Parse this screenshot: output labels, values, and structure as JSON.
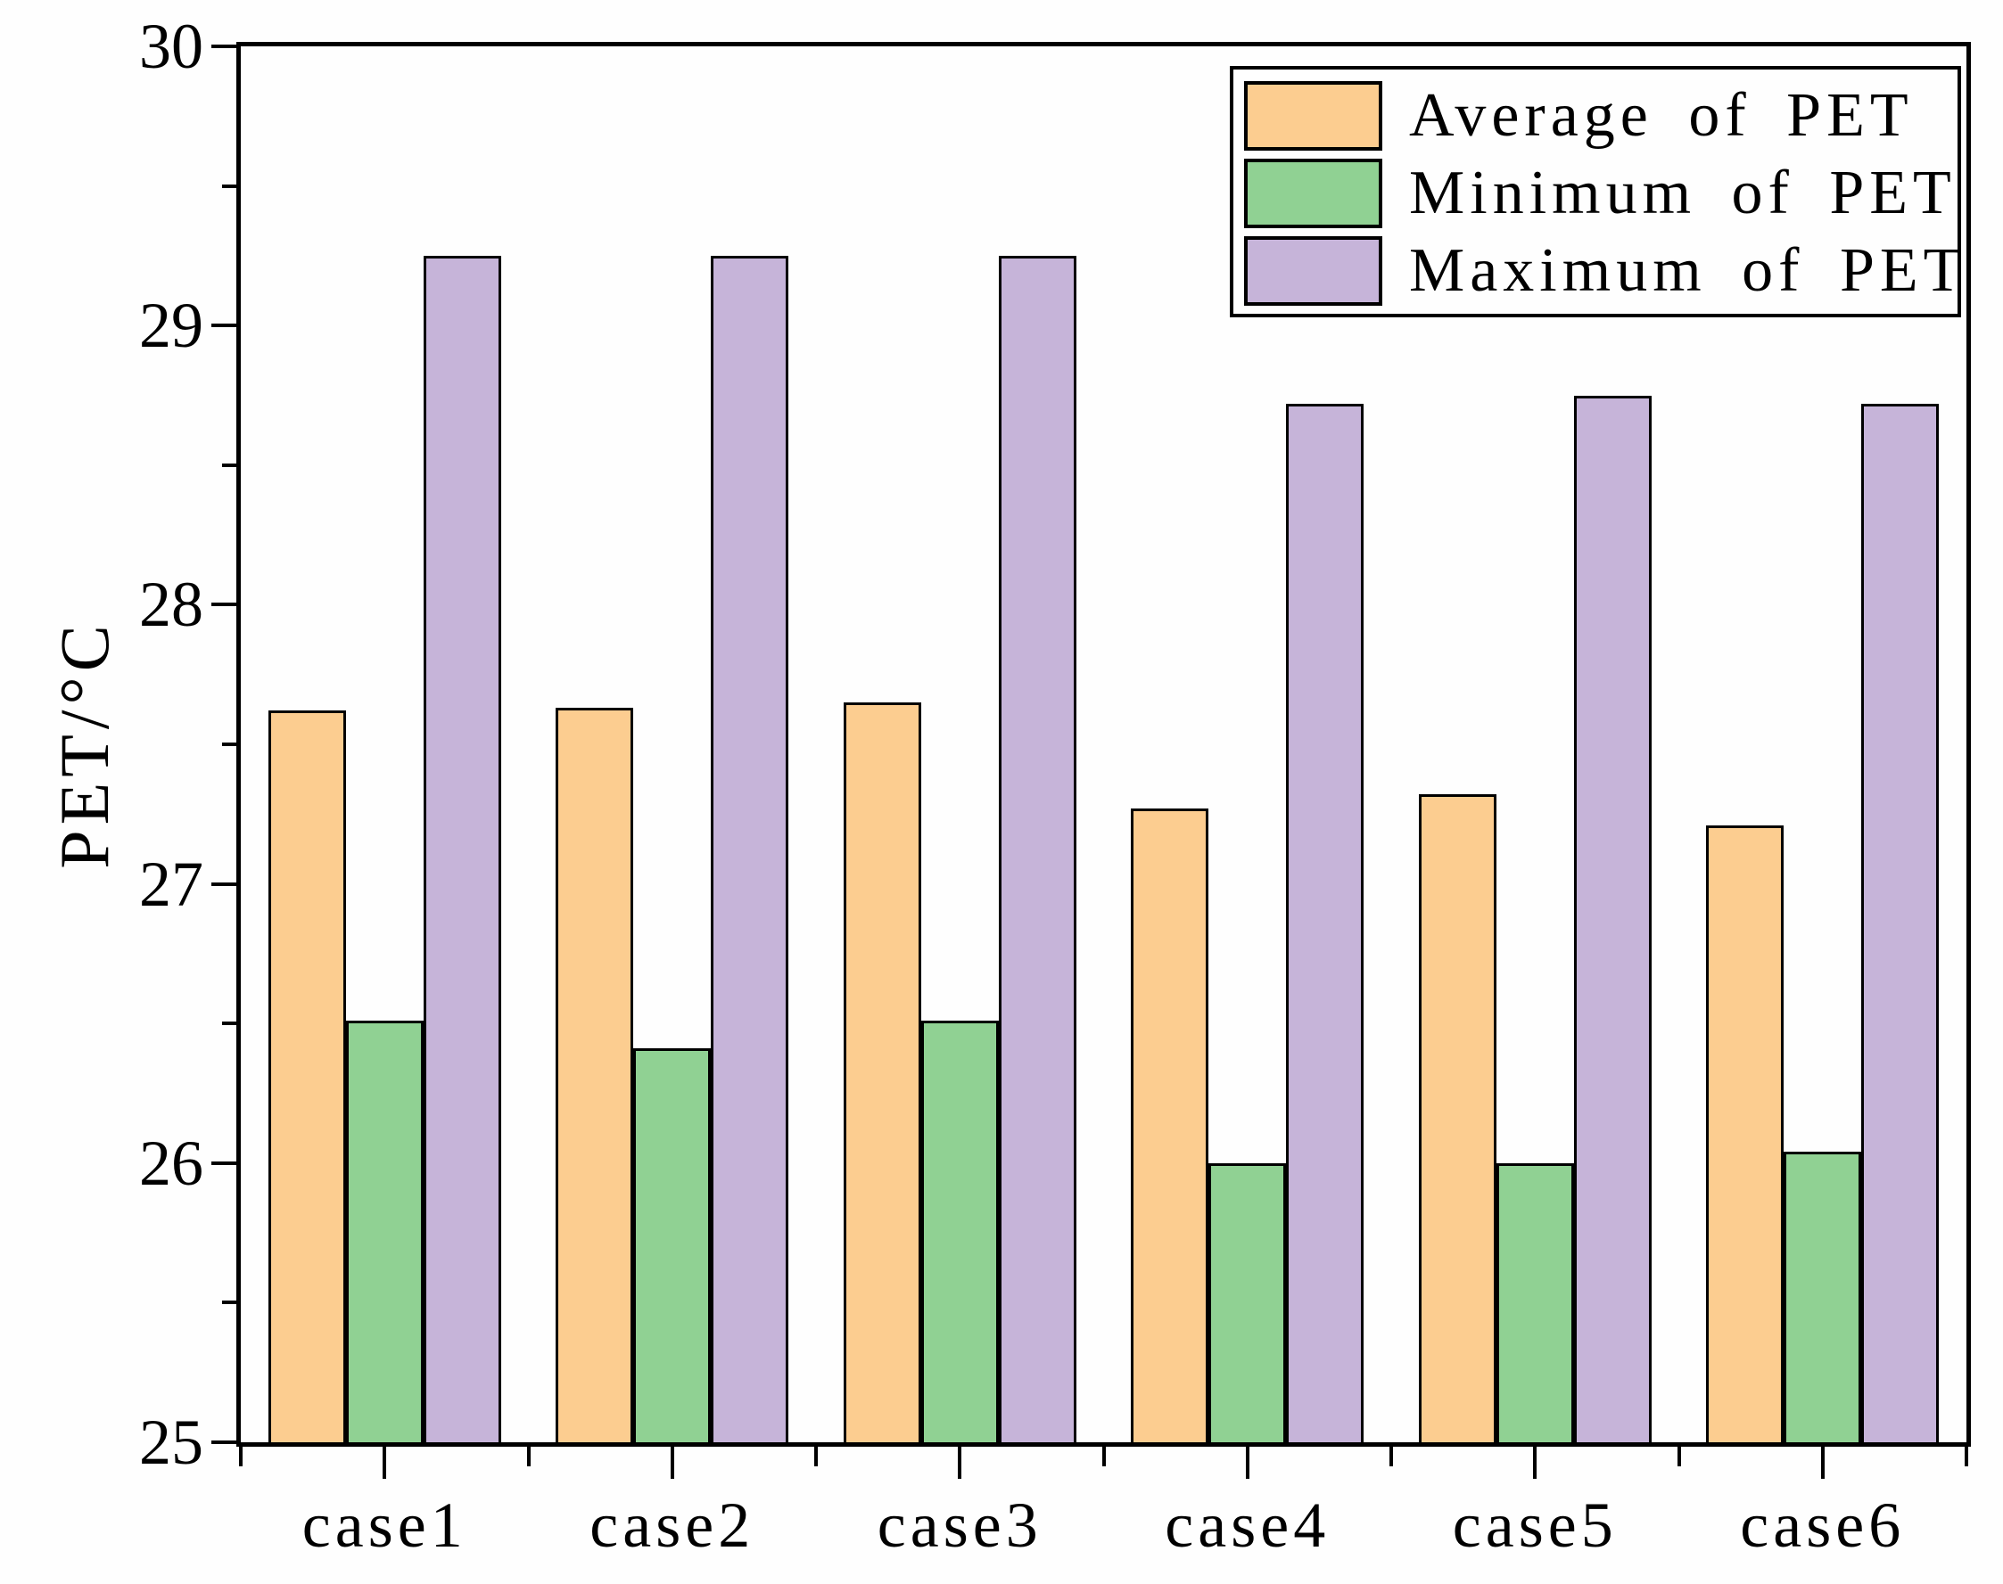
{
  "chart_data": {
    "type": "bar",
    "title": "",
    "categories": [
      "case1",
      "case2",
      "case3",
      "case4",
      "case5",
      "case6"
    ],
    "series": [
      {
        "name": "Average of PET",
        "color": "#FCCD90",
        "values": [
          27.62,
          27.63,
          27.65,
          27.27,
          27.32,
          27.21
        ]
      },
      {
        "name": "Minimum of PET",
        "color": "#90D193",
        "values": [
          26.51,
          26.41,
          26.51,
          26.0,
          26.0,
          26.04
        ]
      },
      {
        "name": "Maximum of PET",
        "color": "#C6B4D9",
        "values": [
          29.25,
          29.25,
          29.25,
          28.72,
          28.75,
          28.72
        ]
      }
    ],
    "xlabel": "",
    "ylabel": "PET/°C",
    "ylim": [
      25,
      30
    ],
    "y_major_ticks": [
      25,
      26,
      27,
      28,
      29,
      30
    ],
    "y_minor_ticks": [
      25.5,
      26.5,
      27.5,
      28.5,
      29.5
    ],
    "grid": false,
    "legend_position": "top-right",
    "bar_outline_color": "#000000",
    "axis_color": "#000000"
  }
}
